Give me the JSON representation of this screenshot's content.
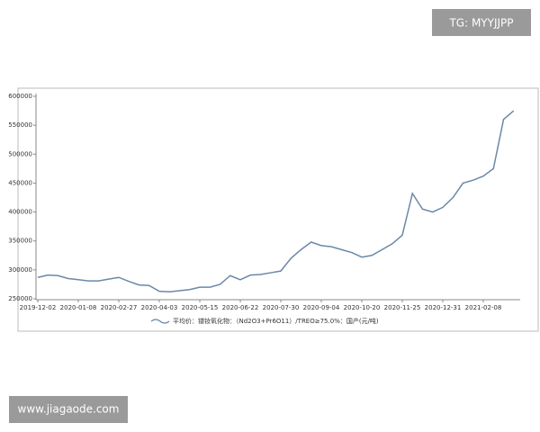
{
  "chart_data": {
    "type": "line",
    "categories": [
      "2019-12-02",
      null,
      null,
      null,
      "2020-01-08",
      null,
      null,
      null,
      "2020-02-27",
      null,
      null,
      null,
      "2020-04-03",
      null,
      null,
      null,
      "2020-05-15",
      null,
      null,
      null,
      "2020-06-22",
      null,
      null,
      null,
      "2020-07-30",
      null,
      null,
      null,
      "2020-09-04",
      null,
      null,
      null,
      "2020-10-20",
      null,
      null,
      null,
      "2020-11-25",
      null,
      null,
      null,
      "2020-12-31",
      null,
      null,
      null,
      "2021-02-08",
      null,
      null,
      null
    ],
    "series": [
      {
        "name": "平均价：镨钕氧化物：（Nd2O3+Pr6O11）/TREO≥75.0%：国产(元/吨)",
        "color": "#6a88a8",
        "values": [
          287000,
          291000,
          290000,
          285000,
          283000,
          281000,
          281000,
          284000,
          287000,
          280000,
          274000,
          273000,
          263000,
          262000,
          264000,
          266000,
          270000,
          270000,
          275000,
          290000,
          283000,
          291000,
          292000,
          295000,
          298000,
          320000,
          335000,
          348000,
          342000,
          340000,
          335000,
          330000,
          322000,
          325000,
          335000,
          345000,
          360000,
          432000,
          405000,
          400000,
          408000,
          425000,
          450000,
          455000,
          462000,
          475000,
          560000,
          575000
        ]
      }
    ],
    "ylim": [
      250000,
      600000
    ],
    "yticks": [
      250000,
      300000,
      350000,
      400000,
      450000,
      500000,
      550000,
      600000
    ],
    "grid": false
  },
  "watermarks": [
    "TG: MYYJJPP",
    "www.jiagaode.com"
  ]
}
